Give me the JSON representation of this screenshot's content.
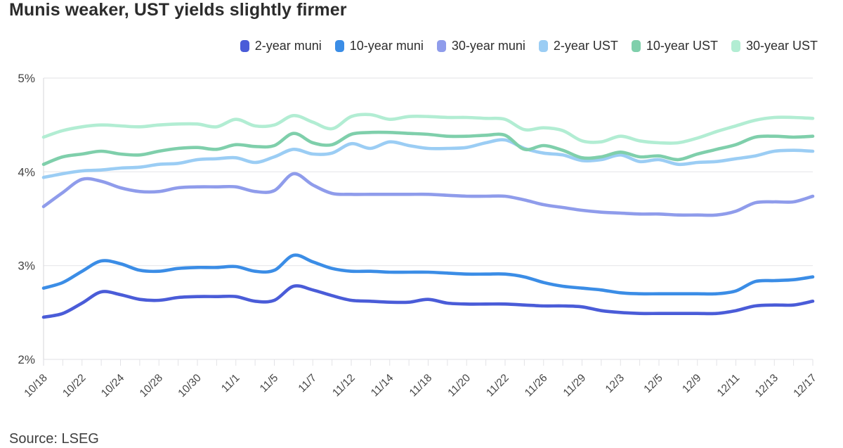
{
  "title": "Munis weaker, UST yields slightly firmer",
  "source": "Source: LSEG",
  "colors": {
    "background": "#ffffff",
    "grid": "#e7e7ea",
    "axis": "#dcdce0",
    "tick": "#e2e2e6",
    "axis_text": "#454545",
    "title_text": "#2c2c2c"
  },
  "chart_data": {
    "type": "line",
    "title": "Munis weaker, UST yields slightly firmer",
    "xlabel": "",
    "ylabel": "",
    "y_unit": "%",
    "ylim": [
      2,
      5
    ],
    "y_ticks": [
      "2%",
      "3%",
      "4%",
      "5%"
    ],
    "grid": "horizontal",
    "legend_position": "top",
    "x_label_step": 2,
    "x": [
      "10/18",
      "10/21",
      "10/22",
      "10/23",
      "10/24",
      "10/25",
      "10/28",
      "10/29",
      "10/30",
      "10/31",
      "11/1",
      "11/4",
      "11/5",
      "11/6",
      "11/7",
      "11/8",
      "11/12",
      "11/13",
      "11/14",
      "11/15",
      "11/18",
      "11/19",
      "11/20",
      "11/21",
      "11/22",
      "11/25",
      "11/26",
      "11/27",
      "11/29",
      "12/2",
      "12/3",
      "12/4",
      "12/5",
      "12/6",
      "12/9",
      "12/10",
      "12/11",
      "12/12",
      "12/13",
      "12/16",
      "12/17"
    ],
    "series": [
      {
        "name": "2-year muni",
        "color": "#4a5cd8",
        "values": [
          2.45,
          2.49,
          2.6,
          2.72,
          2.69,
          2.64,
          2.63,
          2.66,
          2.67,
          2.67,
          2.67,
          2.62,
          2.63,
          2.78,
          2.74,
          2.68,
          2.63,
          2.62,
          2.61,
          2.61,
          2.64,
          2.6,
          2.59,
          2.59,
          2.59,
          2.58,
          2.57,
          2.57,
          2.56,
          2.52,
          2.5,
          2.49,
          2.49,
          2.49,
          2.49,
          2.49,
          2.52,
          2.57,
          2.58,
          2.58,
          2.62
        ]
      },
      {
        "name": "10-year muni",
        "color": "#3b8de6",
        "values": [
          2.76,
          2.82,
          2.94,
          3.05,
          3.02,
          2.95,
          2.94,
          2.97,
          2.98,
          2.98,
          2.99,
          2.94,
          2.95,
          3.11,
          3.04,
          2.97,
          2.94,
          2.94,
          2.93,
          2.93,
          2.93,
          2.92,
          2.91,
          2.91,
          2.91,
          2.88,
          2.82,
          2.78,
          2.76,
          2.74,
          2.71,
          2.7,
          2.7,
          2.7,
          2.7,
          2.7,
          2.73,
          2.83,
          2.84,
          2.85,
          2.88
        ]
      },
      {
        "name": "30-year muni",
        "color": "#8f9ceb",
        "values": [
          3.63,
          3.78,
          3.92,
          3.9,
          3.83,
          3.79,
          3.79,
          3.83,
          3.84,
          3.84,
          3.84,
          3.79,
          3.8,
          3.98,
          3.86,
          3.77,
          3.76,
          3.76,
          3.76,
          3.76,
          3.76,
          3.75,
          3.74,
          3.74,
          3.74,
          3.7,
          3.65,
          3.62,
          3.59,
          3.57,
          3.56,
          3.55,
          3.55,
          3.54,
          3.54,
          3.54,
          3.58,
          3.67,
          3.68,
          3.68,
          3.74
        ]
      },
      {
        "name": "2-year UST",
        "color": "#9bcdf4",
        "values": [
          3.94,
          3.98,
          4.01,
          4.02,
          4.04,
          4.05,
          4.08,
          4.09,
          4.13,
          4.14,
          4.15,
          4.1,
          4.16,
          4.24,
          4.19,
          4.2,
          4.3,
          4.25,
          4.32,
          4.28,
          4.25,
          4.25,
          4.26,
          4.31,
          4.34,
          4.25,
          4.2,
          4.18,
          4.12,
          4.13,
          4.18,
          4.11,
          4.13,
          4.08,
          4.1,
          4.11,
          4.14,
          4.17,
          4.22,
          4.23,
          4.22
        ]
      },
      {
        "name": "10-year UST",
        "color": "#7fcfab",
        "values": [
          4.08,
          4.16,
          4.19,
          4.22,
          4.19,
          4.18,
          4.22,
          4.25,
          4.26,
          4.24,
          4.29,
          4.27,
          4.28,
          4.41,
          4.31,
          4.29,
          4.4,
          4.42,
          4.42,
          4.41,
          4.4,
          4.38,
          4.38,
          4.39,
          4.39,
          4.24,
          4.28,
          4.23,
          4.15,
          4.16,
          4.21,
          4.16,
          4.17,
          4.13,
          4.19,
          4.24,
          4.29,
          4.37,
          4.38,
          4.37,
          4.38
        ]
      },
      {
        "name": "30-year UST",
        "color": "#b2edd3",
        "values": [
          4.37,
          4.44,
          4.48,
          4.5,
          4.49,
          4.48,
          4.5,
          4.51,
          4.51,
          4.48,
          4.56,
          4.49,
          4.5,
          4.6,
          4.53,
          4.46,
          4.59,
          4.61,
          4.56,
          4.59,
          4.59,
          4.58,
          4.58,
          4.57,
          4.56,
          4.45,
          4.47,
          4.44,
          4.33,
          4.32,
          4.38,
          4.33,
          4.31,
          4.31,
          4.36,
          4.43,
          4.49,
          4.55,
          4.58,
          4.58,
          4.57
        ]
      }
    ]
  }
}
